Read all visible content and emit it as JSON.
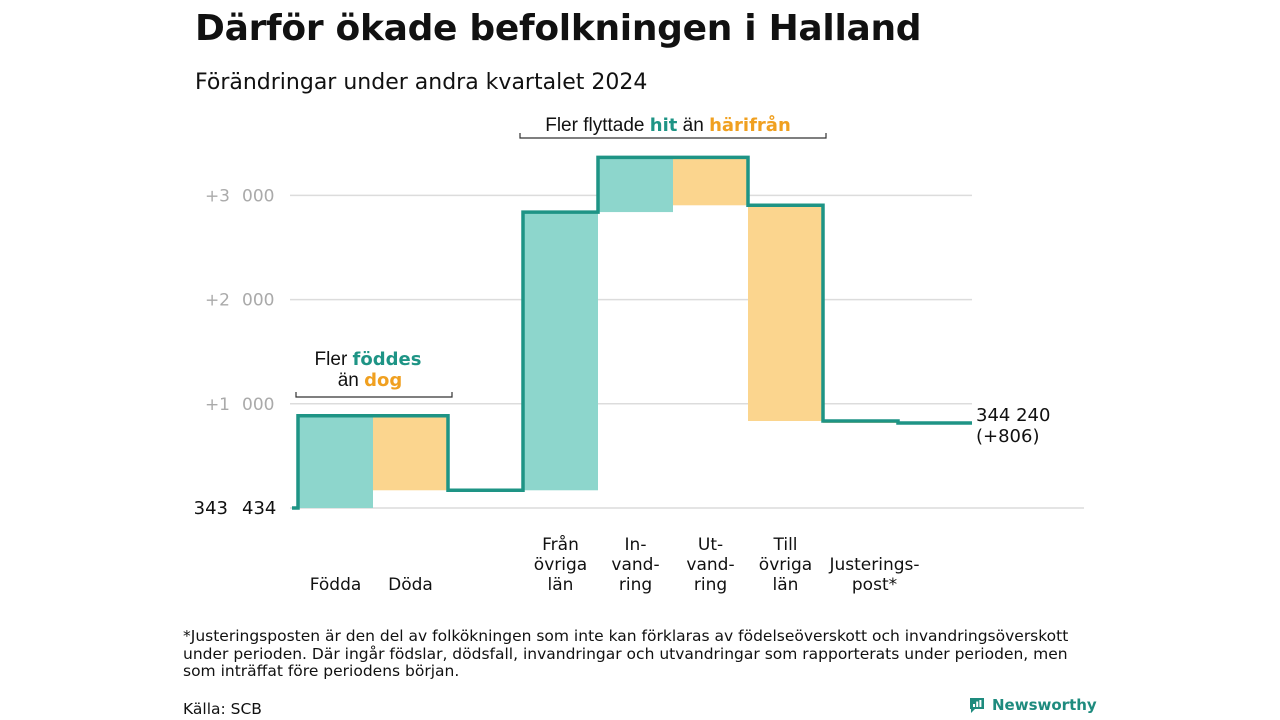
{
  "title": "Därför ökade befolkningen i Halland",
  "subtitle": "Förändringar under andra kvartalet 2024",
  "footnote": "*Justeringsposten är den del av folkökningen som inte kan förklaras av födelseöverskott och invandringsöverskott under perioden. Där ingår födslar, dödsfall, invandringar och utvandringar som rapporterats under perioden, men som inträffat före periodens början.",
  "source": "Källa: SCB",
  "brand": "Newsworthy",
  "colors": {
    "increase": "#8dd6cc",
    "decrease": "#fbd58e",
    "line": "#1e9485",
    "teal_text": "#1e9485",
    "orange_text": "#f0a020",
    "grid": "#dcdcdc",
    "tick": "#aaaaaa"
  },
  "annotations": {
    "births": {
      "line1_prefix": "Fler ",
      "line1_highlight": "föddes",
      "line2_prefix": "än ",
      "line2_highlight": "dog"
    },
    "moves": {
      "prefix": "Fler flyttade ",
      "highlight1": "hit",
      "middle": " än ",
      "highlight2": "härifrån"
    }
  },
  "chart_data": {
    "type": "waterfall",
    "start_label": "343 434",
    "start_value": 343434,
    "end_label": "344 240",
    "end_change_label": "(+806)",
    "end_value": 344240,
    "y_ticks": [
      "+1 000",
      "+2 000",
      "+3 000"
    ],
    "y_tick_values": [
      1000,
      2000,
      3000
    ],
    "ylim": [
      0,
      3500
    ],
    "steps": [
      {
        "label": "Födda",
        "change": 885,
        "kind": "increase"
      },
      {
        "label": "Döda",
        "change": -715,
        "kind": "decrease"
      },
      {
        "label": "Från övriga län",
        "label_lines": [
          "Från",
          "övriga",
          "län"
        ],
        "change": 2670,
        "kind": "increase"
      },
      {
        "label": "Invandring",
        "label_lines": [
          "In-",
          "vand-",
          "ring"
        ],
        "change": 525,
        "kind": "increase"
      },
      {
        "label": "Utvandring",
        "label_lines": [
          "Ut-",
          "vand-",
          "ring"
        ],
        "change": -460,
        "kind": "decrease"
      },
      {
        "label": "Till övriga län",
        "label_lines": [
          "Till",
          "övriga",
          "län"
        ],
        "change": -2070,
        "kind": "decrease"
      },
      {
        "label": "Justeringspost*",
        "label_lines": [
          "Justerings-",
          "post*"
        ],
        "change": -19,
        "kind": "decrease"
      }
    ]
  }
}
